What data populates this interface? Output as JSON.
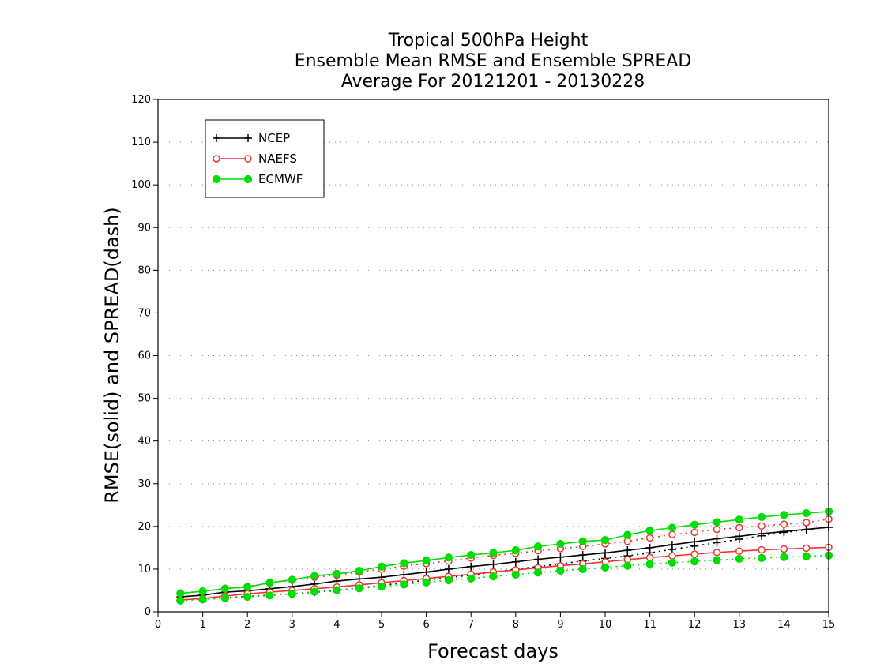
{
  "chart_data": {
    "type": "line",
    "title_lines": [
      "Tropical 500hPa Height",
      "Ensemble Mean RMSE and Ensemble SPREAD",
      "Average For 20121201 - 20130228"
    ],
    "xlabel": "Forecast days",
    "ylabel": "RMSE(solid) and SPREAD(dash)",
    "xlim": [
      0,
      15
    ],
    "ylim": [
      0,
      120
    ],
    "xticks": [
      "0",
      "1",
      "2",
      "3",
      "4",
      "5",
      "6",
      "7",
      "8",
      "9",
      "10",
      "11",
      "12",
      "13",
      "14",
      "15"
    ],
    "yticks": [
      "0",
      "10",
      "20",
      "30",
      "40",
      "50",
      "60",
      "70",
      "80",
      "90",
      "100",
      "110",
      "120"
    ],
    "grid": "horizontal dotted",
    "legend_position": "top-left",
    "x": [
      0.5,
      1,
      1.5,
      2,
      2.5,
      3,
      3.5,
      4,
      4.5,
      5,
      5.5,
      6,
      6.5,
      7,
      7.5,
      8,
      8.5,
      9,
      9.5,
      10,
      10.5,
      11,
      11.5,
      12,
      12.5,
      13,
      13.5,
      14,
      14.5,
      15
    ],
    "series": [
      {
        "name": "NCEP",
        "color": "#000000",
        "marker": "plus",
        "rmse": [
          3.5,
          3.9,
          4.6,
          4.9,
          5.4,
          5.9,
          6.5,
          7.2,
          7.7,
          8.1,
          8.7,
          9.3,
          10.0,
          10.6,
          11.1,
          11.7,
          12.3,
          12.8,
          13.3,
          13.8,
          14.4,
          15.0,
          15.7,
          16.4,
          17.1,
          17.7,
          18.3,
          18.8,
          19.3,
          19.8
        ],
        "spread": [
          2.7,
          3.0,
          3.3,
          3.6,
          3.9,
          4.2,
          4.6,
          5.0,
          5.6,
          6.2,
          6.8,
          7.4,
          8.0,
          8.6,
          9.3,
          10.0,
          10.6,
          11.2,
          11.9,
          12.5,
          13.1,
          13.8,
          14.6,
          15.4,
          16.2,
          17.0,
          17.8,
          18.6,
          19.2,
          19.8
        ]
      },
      {
        "name": "NAEFS",
        "color": "#ee3333",
        "marker": "open-circle",
        "rmse": [
          2.8,
          3.1,
          3.7,
          4.2,
          4.6,
          5.0,
          5.4,
          5.8,
          6.3,
          6.8,
          7.3,
          7.8,
          8.3,
          8.8,
          9.3,
          9.8,
          10.3,
          10.8,
          11.2,
          11.7,
          12.2,
          12.7,
          13.1,
          13.5,
          13.9,
          14.2,
          14.5,
          14.7,
          14.9,
          15.1
        ],
        "spread": [
          4.4,
          4.8,
          5.5,
          5.9,
          6.8,
          7.4,
          8.1,
          8.6,
          9.3,
          10.0,
          10.7,
          11.3,
          11.9,
          12.6,
          13.2,
          13.7,
          14.3,
          14.8,
          15.3,
          15.9,
          16.5,
          17.3,
          18.1,
          18.6,
          19.3,
          19.7,
          20.1,
          20.5,
          20.9,
          21.7
        ]
      },
      {
        "name": "ECMWF",
        "color": "#00dd00",
        "marker": "filled-circle",
        "rmse": [
          4.3,
          4.8,
          5.4,
          5.8,
          6.8,
          7.5,
          8.4,
          8.9,
          9.6,
          10.6,
          11.4,
          12.0,
          12.7,
          13.3,
          13.8,
          14.4,
          15.3,
          15.9,
          16.5,
          16.8,
          18.0,
          19.0,
          19.7,
          20.4,
          21.0,
          21.6,
          22.2,
          22.7,
          23.1,
          23.5
        ],
        "spread": [
          2.6,
          2.9,
          3.2,
          3.5,
          3.8,
          4.2,
          4.7,
          5.1,
          5.5,
          5.9,
          6.4,
          6.9,
          7.4,
          7.8,
          8.3,
          8.7,
          9.2,
          9.6,
          10.0,
          10.4,
          10.8,
          11.2,
          11.5,
          11.8,
          12.1,
          12.4,
          12.6,
          12.8,
          13.0,
          13.2
        ]
      }
    ]
  }
}
